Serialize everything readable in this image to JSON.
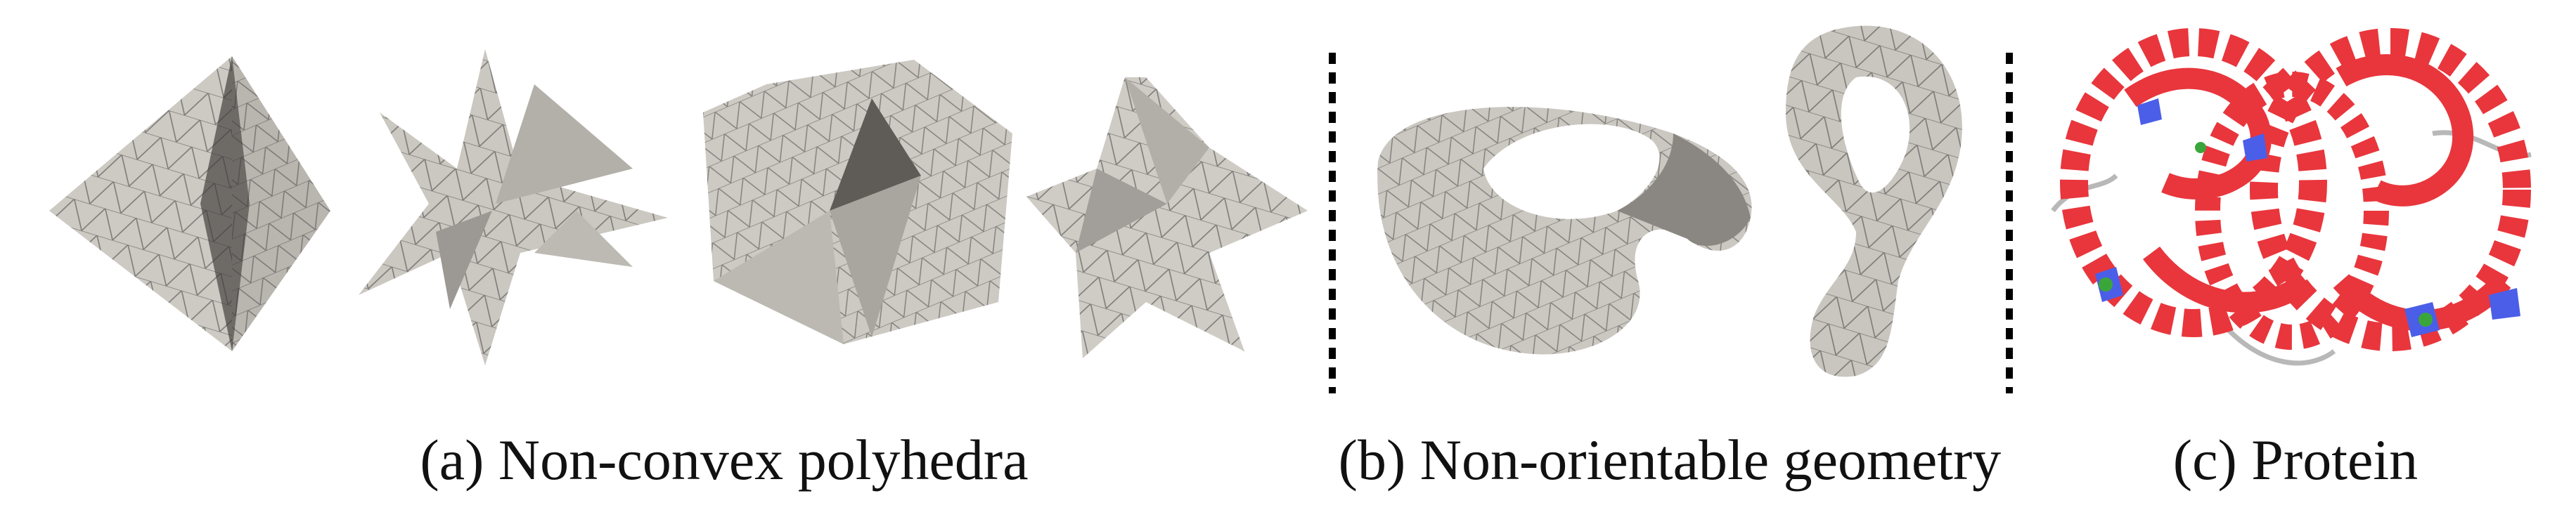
{
  "captions": {
    "a": "(a) Non-convex polyhedra",
    "b": "(b) Non-orientable geometry",
    "c": "(c) Protein"
  },
  "colors": {
    "mesh_fill": "#cfcbc5",
    "mesh_dark": "#8f8c88",
    "mesh_edge": "#2e2e2e",
    "helix_red": "#e8363c",
    "sheet_blue": "#4b5ee8",
    "coil_grey": "#b8b8b8",
    "ligand_green": "#3aa63a",
    "separator": "#000000"
  }
}
